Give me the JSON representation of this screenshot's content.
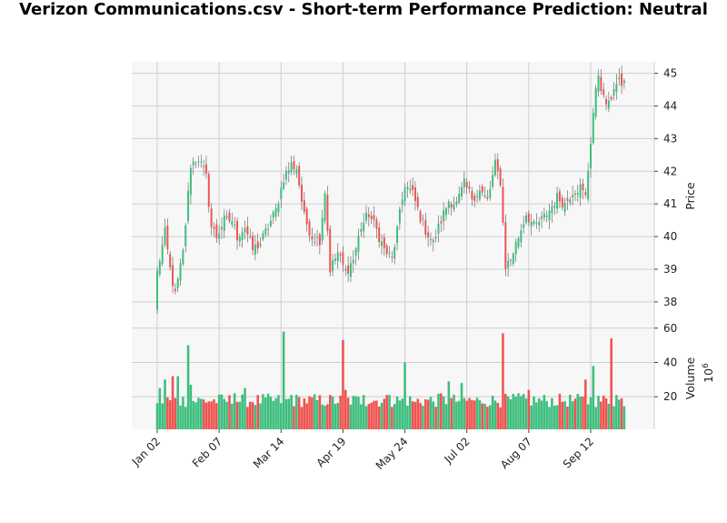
{
  "chart_data": {
    "type": "candlestick",
    "title": "Verizon Communications.csv - Short-term Performance Prediction: Neutral",
    "up_color": "#26a69a",
    "up_fill": "#3dbe7e",
    "down_color": "#ef5350",
    "panel_background": "#f7f7f7",
    "grid": true,
    "price_panel": {
      "ylabel": "Price",
      "ylim": [
        37.3,
        45.35
      ],
      "yticks": [
        38,
        39,
        40,
        41,
        42,
        43,
        44,
        45
      ],
      "ytick_labels": [
        "38",
        "39",
        "40",
        "41",
        "42",
        "43",
        "44",
        "45"
      ]
    },
    "volume_panel": {
      "ylabel": "Volume",
      "unit_label": "10^6",
      "unit_base": "10",
      "unit_exp": "6",
      "ylim": [
        1,
        62
      ],
      "yticks": [
        20,
        40,
        60
      ],
      "ytick_labels": [
        "20",
        "40",
        "60"
      ]
    },
    "x_ticks": [
      {
        "index": 0,
        "label": "Jan 02"
      },
      {
        "index": 24,
        "label": "Feb 07"
      },
      {
        "index": 48,
        "label": "Mar 14"
      },
      {
        "index": 72,
        "label": "Apr 19"
      },
      {
        "index": 96,
        "label": "May 24"
      },
      {
        "index": 120,
        "label": "Jul 02"
      },
      {
        "index": 144,
        "label": "Aug 07"
      },
      {
        "index": 168,
        "label": "Sep 12"
      }
    ],
    "close_anchors": [
      [
        0,
        38.9
      ],
      [
        3,
        40.1
      ],
      [
        5,
        39.0
      ],
      [
        7,
        38.2
      ],
      [
        10,
        39.5
      ],
      [
        13,
        42.2
      ],
      [
        16,
        42.4
      ],
      [
        19,
        41.8
      ],
      [
        21,
        40.3
      ],
      [
        23,
        40.0
      ],
      [
        26,
        40.5
      ],
      [
        29,
        40.5
      ],
      [
        31,
        40.0
      ],
      [
        34,
        40.3
      ],
      [
        37,
        39.6
      ],
      [
        40,
        39.8
      ],
      [
        43,
        40.3
      ],
      [
        46,
        40.8
      ],
      [
        49,
        41.8
      ],
      [
        52,
        42.2
      ],
      [
        54,
        42.1
      ],
      [
        57,
        40.6
      ],
      [
        60,
        40.0
      ],
      [
        63,
        39.9
      ],
      [
        65,
        41.4
      ],
      [
        67,
        39.0
      ],
      [
        70,
        39.5
      ],
      [
        73,
        38.9
      ],
      [
        76,
        39.3
      ],
      [
        79,
        40.3
      ],
      [
        82,
        40.7
      ],
      [
        85,
        40.2
      ],
      [
        88,
        39.6
      ],
      [
        91,
        39.3
      ],
      [
        93,
        40.2
      ],
      [
        96,
        41.6
      ],
      [
        99,
        41.3
      ],
      [
        102,
        40.6
      ],
      [
        104,
        40.2
      ],
      [
        107,
        39.8
      ],
      [
        110,
        40.5
      ],
      [
        113,
        41.1
      ],
      [
        116,
        41.0
      ],
      [
        119,
        41.6
      ],
      [
        122,
        41.2
      ],
      [
        125,
        41.4
      ],
      [
        128,
        41.1
      ],
      [
        131,
        42.2
      ],
      [
        133,
        41.7
      ],
      [
        135,
        39.1
      ],
      [
        137,
        39.3
      ],
      [
        140,
        40.0
      ],
      [
        143,
        40.7
      ],
      [
        146,
        40.3
      ],
      [
        149,
        40.5
      ],
      [
        152,
        40.8
      ],
      [
        155,
        41.2
      ],
      [
        158,
        41.0
      ],
      [
        161,
        41.4
      ],
      [
        164,
        41.5
      ],
      [
        166,
        41.2
      ],
      [
        169,
        43.8
      ],
      [
        171,
        45.0
      ],
      [
        173,
        44.2
      ],
      [
        175,
        44.0
      ],
      [
        177,
        44.6
      ],
      [
        179,
        44.7
      ]
    ],
    "volume_spikes": [
      [
        1,
        25
      ],
      [
        3,
        30
      ],
      [
        6,
        32
      ],
      [
        8,
        32
      ],
      [
        12,
        50
      ],
      [
        13,
        27
      ],
      [
        30,
        22
      ],
      [
        34,
        25
      ],
      [
        49,
        58
      ],
      [
        52,
        21
      ],
      [
        72,
        53
      ],
      [
        73,
        24
      ],
      [
        80,
        21
      ],
      [
        90,
        21
      ],
      [
        96,
        40
      ],
      [
        100,
        17
      ],
      [
        110,
        22
      ],
      [
        113,
        29
      ],
      [
        118,
        28
      ],
      [
        125,
        18
      ],
      [
        134,
        57
      ],
      [
        140,
        22
      ],
      [
        144,
        24
      ],
      [
        166,
        30
      ],
      [
        169,
        38
      ],
      [
        176,
        54
      ],
      [
        178,
        21
      ]
    ],
    "volume_base": 17
  }
}
